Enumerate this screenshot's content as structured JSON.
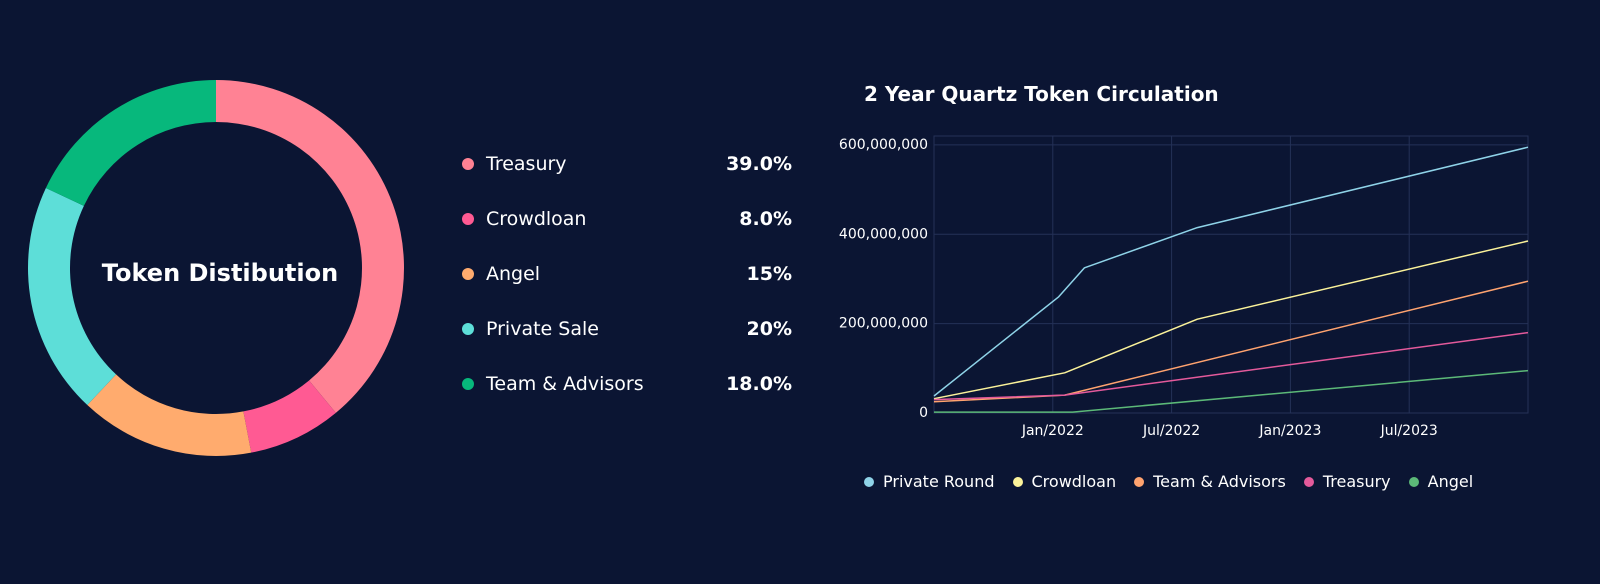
{
  "colors": {
    "background": "#0b1533",
    "grid": "#243157",
    "text": "#ffffff"
  },
  "chart_data": [
    {
      "type": "pie",
      "title": "Token Distibution",
      "categories": [
        "Treasury",
        "Crowdloan",
        "Angel",
        "Private Sale",
        "Team & Advisors"
      ],
      "values": [
        39.0,
        8.0,
        15,
        20,
        18.0
      ],
      "labels": [
        "39.0%",
        "8.0%",
        "15%",
        "20%",
        "18.0%"
      ],
      "colors": [
        "#ff8294",
        "#ff5a93",
        "#ffab6e",
        "#5dded8",
        "#07b87c"
      ],
      "legend": "right"
    },
    {
      "type": "line",
      "title": "2 Year Quartz Token Circulation",
      "x": [
        0,
        6,
        7,
        12,
        18,
        24
      ],
      "xlabel": "",
      "ylabel": "",
      "x_ticks": [
        {
          "x": 6,
          "label": "Jan/2022"
        },
        {
          "x": 12,
          "label": "Jul/2022"
        },
        {
          "x": 18,
          "label": "Jan/2023"
        },
        {
          "x": 24,
          "label": "Jul/2023"
        }
      ],
      "xlim": [
        0,
        30
      ],
      "y_ticks": [
        0,
        200000000,
        400000000,
        600000000
      ],
      "y_tick_labels": [
        "0",
        "200,000,000",
        "400,000,000",
        "600,000,000"
      ],
      "ylim": [
        0,
        620000000
      ],
      "grid": true,
      "legend": "bottom",
      "series": [
        {
          "name": "Private Round",
          "color": "#8fd3e8",
          "points": [
            [
              0,
              38000000
            ],
            [
              6.3,
              260000000
            ],
            [
              7.6,
              325000000
            ],
            [
              13.3,
              415000000
            ],
            [
              30,
              595000000
            ]
          ]
        },
        {
          "name": "Crowdloan",
          "color": "#fbf29a",
          "points": [
            [
              0,
              32000000
            ],
            [
              6.6,
              90000000
            ],
            [
              13.3,
              210000000
            ],
            [
              30,
              385000000
            ]
          ]
        },
        {
          "name": "Team & Advisors",
          "color": "#ffa36f",
          "points": [
            [
              0,
              25000000
            ],
            [
              6.6,
              40000000
            ],
            [
              30,
              295000000
            ]
          ]
        },
        {
          "name": "Treasury",
          "color": "#e45a9b",
          "points": [
            [
              0,
              30000000
            ],
            [
              6.6,
              40000000
            ],
            [
              30,
              180000000
            ]
          ]
        },
        {
          "name": "Angel",
          "color": "#5cb978",
          "points": [
            [
              0,
              2000000
            ],
            [
              7.0,
              2000000
            ],
            [
              30,
              95000000
            ]
          ]
        }
      ]
    }
  ]
}
